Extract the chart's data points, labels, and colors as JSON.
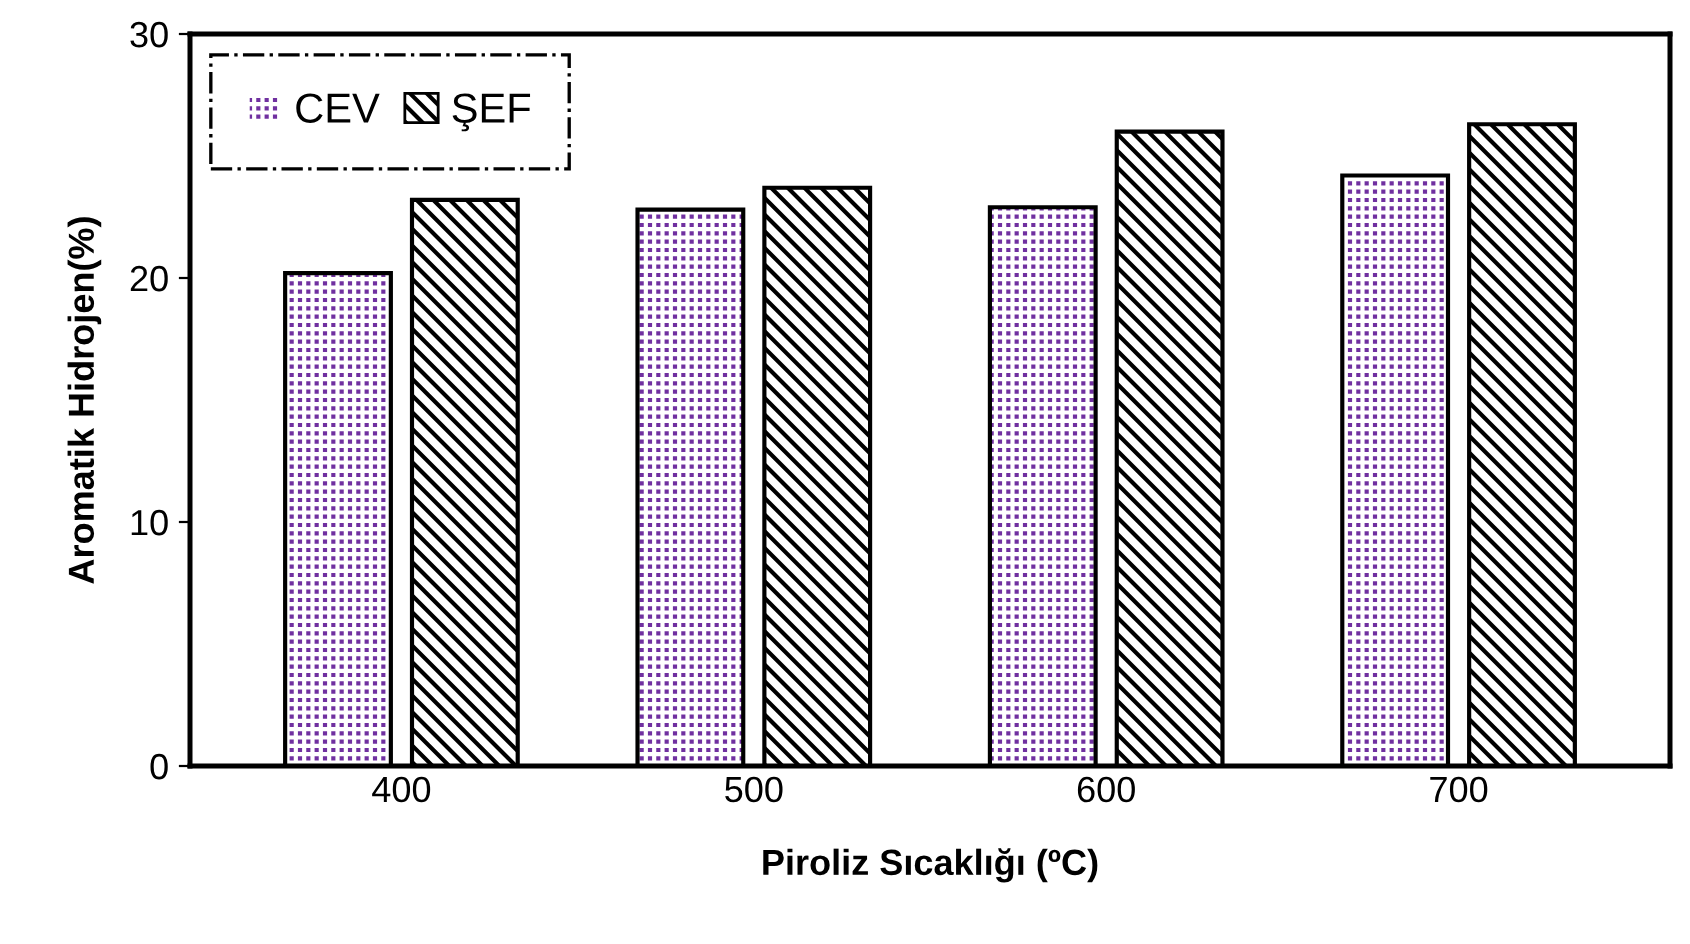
{
  "chart_data": {
    "type": "bar",
    "xlabel": "Piroliz Sıcaklığı (ºC)",
    "ylabel": "Aromatik Hidrojen(%)",
    "categories": [
      "400",
      "500",
      "600",
      "700"
    ],
    "series": [
      {
        "name": "CEV",
        "color": "#7030a0",
        "values": [
          20.2,
          22.8,
          22.9,
          24.2
        ]
      },
      {
        "name": "ŞEF",
        "color": "#000000",
        "values": [
          23.2,
          23.7,
          26.0,
          26.3
        ]
      }
    ],
    "ylim": [
      0,
      30
    ],
    "yticks": [
      0,
      10,
      20,
      30
    ],
    "grid": false,
    "legend": "top left"
  }
}
